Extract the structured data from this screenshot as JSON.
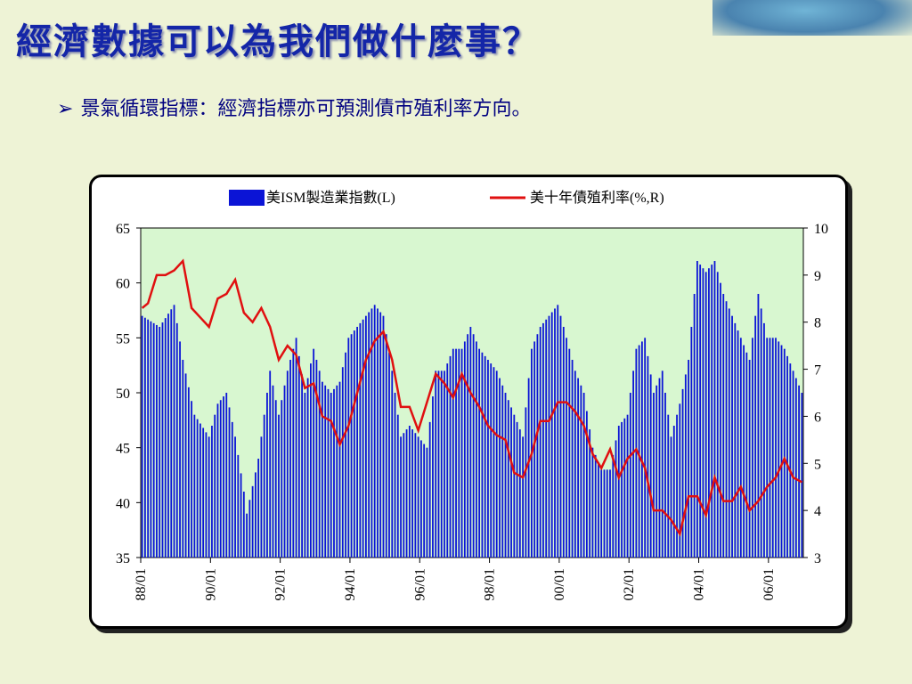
{
  "slide": {
    "title": "經濟數據可以為我們做什麼事？",
    "bullet_marker": "➢",
    "bullet_text": "景氣循環指標：經濟指標亦可預測債市殖利率方向。"
  },
  "chart_data": {
    "type": "bar+line",
    "legend_position": "top",
    "legend": [
      "美ISM製造業指數(L)",
      "美十年債殖利率(%,R)"
    ],
    "x_tick_labels": [
      "88/01",
      "90/01",
      "92/01",
      "94/01",
      "96/01",
      "98/01",
      "00/01",
      "02/01",
      "04/01",
      "06/01"
    ],
    "x_range": [
      "1988-01",
      "2006-12"
    ],
    "y_left": {
      "min": 35,
      "max": 65,
      "ticks": [
        35,
        40,
        45,
        50,
        55,
        60,
        65
      ]
    },
    "y_right": {
      "min": 3,
      "max": 10,
      "ticks": [
        3,
        4,
        5,
        6,
        7,
        8,
        9,
        10
      ]
    },
    "colors": {
      "bars": "#0b14d6",
      "line": "#e01010",
      "plot_bg": "#d8f7d0"
    },
    "series": [
      {
        "name": "美ISM製造業指數(L)",
        "axis": "left",
        "kind": "bar",
        "points": [
          [
            "1988-01",
            57
          ],
          [
            "1988-07",
            56
          ],
          [
            "1988-12",
            58
          ],
          [
            "1989-03",
            53
          ],
          [
            "1989-07",
            48
          ],
          [
            "1989-12",
            46
          ],
          [
            "1990-03",
            49
          ],
          [
            "1990-06",
            50
          ],
          [
            "1990-09",
            46
          ],
          [
            "1990-12",
            41
          ],
          [
            "1991-01",
            39
          ],
          [
            "1991-05",
            44
          ],
          [
            "1991-09",
            52
          ],
          [
            "1991-12",
            48
          ],
          [
            "1992-03",
            52
          ],
          [
            "1992-06",
            55
          ],
          [
            "1992-09",
            50
          ],
          [
            "1992-12",
            54
          ],
          [
            "1993-03",
            51
          ],
          [
            "1993-06",
            50
          ],
          [
            "1993-09",
            51
          ],
          [
            "1993-12",
            55
          ],
          [
            "1994-03",
            56
          ],
          [
            "1994-06",
            57
          ],
          [
            "1994-09",
            58
          ],
          [
            "1994-12",
            57
          ],
          [
            "1995-03",
            52
          ],
          [
            "1995-06",
            46
          ],
          [
            "1995-09",
            47
          ],
          [
            "1995-12",
            46
          ],
          [
            "1996-03",
            45
          ],
          [
            "1996-06",
            52
          ],
          [
            "1996-09",
            52
          ],
          [
            "1996-12",
            54
          ],
          [
            "1997-03",
            54
          ],
          [
            "1997-06",
            56
          ],
          [
            "1997-09",
            54
          ],
          [
            "1997-12",
            53
          ],
          [
            "1998-03",
            52
          ],
          [
            "1998-06",
            50
          ],
          [
            "1998-09",
            48
          ],
          [
            "1998-12",
            46
          ],
          [
            "1999-03",
            54
          ],
          [
            "1999-06",
            56
          ],
          [
            "1999-09",
            57
          ],
          [
            "1999-12",
            58
          ],
          [
            "2000-03",
            55
          ],
          [
            "2000-06",
            52
          ],
          [
            "2000-09",
            50
          ],
          [
            "2000-12",
            45
          ],
          [
            "2001-03",
            43
          ],
          [
            "2001-06",
            43
          ],
          [
            "2001-09",
            47
          ],
          [
            "2001-12",
            48
          ],
          [
            "2002-03",
            54
          ],
          [
            "2002-06",
            55
          ],
          [
            "2002-09",
            50
          ],
          [
            "2002-12",
            52
          ],
          [
            "2003-03",
            46
          ],
          [
            "2003-06",
            49
          ],
          [
            "2003-09",
            53
          ],
          [
            "2003-12",
            62
          ],
          [
            "2004-03",
            61
          ],
          [
            "2004-06",
            62
          ],
          [
            "2004-09",
            59
          ],
          [
            "2004-12",
            57
          ],
          [
            "2005-03",
            55
          ],
          [
            "2005-06",
            53
          ],
          [
            "2005-09",
            59
          ],
          [
            "2005-12",
            55
          ],
          [
            "2006-03",
            55
          ],
          [
            "2006-06",
            54
          ],
          [
            "2006-09",
            52
          ],
          [
            "2006-12",
            50
          ]
        ]
      },
      {
        "name": "美十年債殖利率(%,R)",
        "axis": "right",
        "kind": "line",
        "points": [
          [
            "1988-01",
            8.3
          ],
          [
            "1988-03",
            8.4
          ],
          [
            "1988-06",
            9.0
          ],
          [
            "1988-09",
            9.0
          ],
          [
            "1988-12",
            9.1
          ],
          [
            "1989-03",
            9.3
          ],
          [
            "1989-06",
            8.3
          ],
          [
            "1989-09",
            8.1
          ],
          [
            "1989-12",
            7.9
          ],
          [
            "1990-03",
            8.5
          ],
          [
            "1990-06",
            8.6
          ],
          [
            "1990-09",
            8.9
          ],
          [
            "1990-12",
            8.2
          ],
          [
            "1991-03",
            8.0
          ],
          [
            "1991-06",
            8.3
          ],
          [
            "1991-09",
            7.9
          ],
          [
            "1991-12",
            7.2
          ],
          [
            "1992-03",
            7.5
          ],
          [
            "1992-06",
            7.3
          ],
          [
            "1992-09",
            6.6
          ],
          [
            "1992-12",
            6.7
          ],
          [
            "1993-03",
            6.0
          ],
          [
            "1993-06",
            5.9
          ],
          [
            "1993-09",
            5.4
          ],
          [
            "1993-12",
            5.8
          ],
          [
            "1994-03",
            6.5
          ],
          [
            "1994-06",
            7.2
          ],
          [
            "1994-09",
            7.6
          ],
          [
            "1994-12",
            7.8
          ],
          [
            "1995-03",
            7.2
          ],
          [
            "1995-06",
            6.2
          ],
          [
            "1995-09",
            6.2
          ],
          [
            "1995-12",
            5.7
          ],
          [
            "1996-03",
            6.3
          ],
          [
            "1996-06",
            6.9
          ],
          [
            "1996-09",
            6.7
          ],
          [
            "1996-12",
            6.4
          ],
          [
            "1997-03",
            6.9
          ],
          [
            "1997-06",
            6.5
          ],
          [
            "1997-09",
            6.2
          ],
          [
            "1997-12",
            5.8
          ],
          [
            "1998-03",
            5.6
          ],
          [
            "1998-06",
            5.5
          ],
          [
            "1998-09",
            4.8
          ],
          [
            "1998-12",
            4.7
          ],
          [
            "1999-03",
            5.2
          ],
          [
            "1999-06",
            5.9
          ],
          [
            "1999-09",
            5.9
          ],
          [
            "1999-12",
            6.3
          ],
          [
            "2000-03",
            6.3
          ],
          [
            "2000-06",
            6.1
          ],
          [
            "2000-09",
            5.8
          ],
          [
            "2000-12",
            5.2
          ],
          [
            "2001-03",
            4.9
          ],
          [
            "2001-06",
            5.3
          ],
          [
            "2001-09",
            4.7
          ],
          [
            "2001-12",
            5.1
          ],
          [
            "2002-03",
            5.3
          ],
          [
            "2002-06",
            4.9
          ],
          [
            "2002-09",
            4.0
          ],
          [
            "2002-12",
            4.0
          ],
          [
            "2003-03",
            3.8
          ],
          [
            "2003-06",
            3.5
          ],
          [
            "2003-09",
            4.3
          ],
          [
            "2003-12",
            4.3
          ],
          [
            "2004-03",
            3.9
          ],
          [
            "2004-06",
            4.7
          ],
          [
            "2004-09",
            4.2
          ],
          [
            "2004-12",
            4.2
          ],
          [
            "2005-03",
            4.5
          ],
          [
            "2005-06",
            4.0
          ],
          [
            "2005-09",
            4.2
          ],
          [
            "2005-12",
            4.5
          ],
          [
            "2006-03",
            4.7
          ],
          [
            "2006-06",
            5.1
          ],
          [
            "2006-09",
            4.7
          ],
          [
            "2006-12",
            4.6
          ]
        ]
      }
    ]
  }
}
